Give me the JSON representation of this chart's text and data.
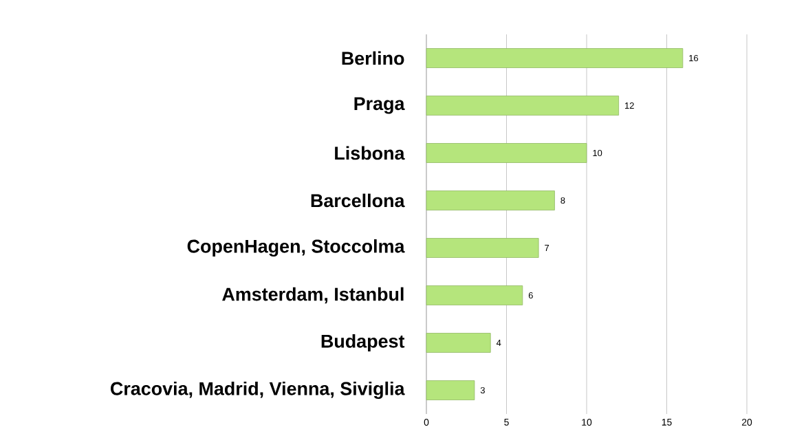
{
  "chart_data": {
    "type": "bar",
    "orientation": "horizontal",
    "categories": [
      "Berlino",
      "Praga",
      "Lisbona",
      "Barcellona",
      "CopenHagen, Stoccolma",
      "Amsterdam, Istanbul",
      "Budapest",
      "Cracovia, Madrid, Vienna, Siviglia"
    ],
    "values": [
      16,
      12,
      10,
      8,
      7,
      6,
      4,
      3
    ],
    "color": "#b5e57c",
    "xlim": [
      0,
      20
    ],
    "xticks": [
      0,
      5,
      10,
      15,
      20
    ],
    "grid": "x",
    "data_labels": true
  }
}
